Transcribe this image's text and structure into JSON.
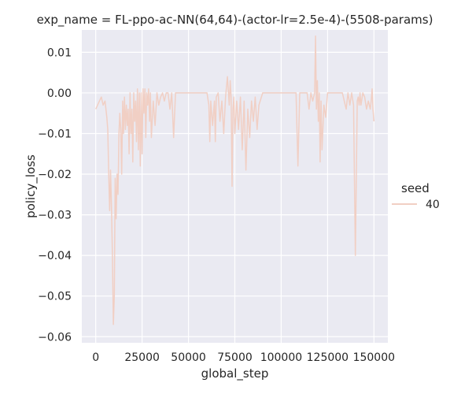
{
  "chart_data": {
    "type": "line",
    "title": "exp_name = FL-ppo-ac-NN(64,64)-(actor-lr=2.5e-4)-(5508-params)",
    "xlabel": "global_step",
    "ylabel": "policy_loss",
    "xlim": [
      -7500,
      157500
    ],
    "ylim": [
      -0.0615,
      0.0155
    ],
    "x_ticks": [
      0,
      25000,
      50000,
      75000,
      100000,
      125000,
      150000
    ],
    "x_tick_labels": [
      "0",
      "25000",
      "50000",
      "75000",
      "100000",
      "125000",
      "150000"
    ],
    "y_ticks": [
      0.01,
      0.0,
      -0.01,
      -0.02,
      -0.03,
      -0.04,
      -0.05,
      -0.06
    ],
    "y_tick_labels": [
      "0.01",
      "0.00",
      "−0.01",
      "−0.02",
      "−0.03",
      "−0.04",
      "−0.05",
      "−0.06"
    ],
    "grid": true,
    "legend": {
      "title": "seed",
      "placement": "right",
      "entries": [
        "40"
      ]
    },
    "colors": {
      "series": "#f1cfc4",
      "background": "#eaeaf2",
      "grid": "#ffffff"
    },
    "series": [
      {
        "name": "40",
        "x": [
          0,
          1000,
          2000,
          3000,
          4000,
          5000,
          6000,
          6500,
          7000,
          7500,
          8000,
          8500,
          9000,
          9500,
          10000,
          10500,
          11000,
          11500,
          12000,
          12500,
          13000,
          13500,
          14000,
          14500,
          15000,
          15500,
          16000,
          16500,
          17000,
          17500,
          18000,
          18500,
          19000,
          19500,
          20000,
          20500,
          21000,
          21500,
          22000,
          22500,
          23000,
          23500,
          24000,
          24500,
          25000,
          25500,
          26000,
          26500,
          27000,
          27500,
          28000,
          28500,
          29000,
          29500,
          30000,
          31000,
          32000,
          33000,
          34000,
          35000,
          36000,
          37000,
          38000,
          39000,
          40000,
          41000,
          42000,
          43000,
          45000,
          50000,
          55000,
          58000,
          60000,
          61000,
          61500,
          62000,
          63000,
          64000,
          64500,
          65000,
          66000,
          67000,
          68000,
          69000,
          70000,
          71000,
          72000,
          72500,
          73000,
          73500,
          74000,
          74500,
          75000,
          76000,
          77000,
          78000,
          79000,
          80000,
          81000,
          82000,
          83000,
          84000,
          85000,
          86000,
          87000,
          88000,
          90000,
          95000,
          100000,
          105000,
          108000,
          109000,
          110000,
          112000,
          114000,
          115000,
          116000,
          117000,
          118000,
          118500,
          119000,
          119500,
          120000,
          120500,
          121000,
          121500,
          122000,
          123000,
          124000,
          125000,
          127000,
          130000,
          133000,
          135000,
          136000,
          137000,
          138000,
          139000,
          140000,
          141000,
          141500,
          142000,
          142500,
          143000,
          144000,
          145000,
          146000,
          147000,
          148000,
          148500,
          149000,
          149500,
          150000
        ],
        "values": [
          -0.004,
          -0.003,
          -0.002,
          -0.001,
          -0.003,
          -0.002,
          -0.006,
          -0.009,
          -0.02,
          -0.029,
          -0.019,
          -0.028,
          -0.04,
          -0.057,
          -0.05,
          -0.021,
          -0.031,
          -0.02,
          -0.025,
          -0.01,
          -0.005,
          -0.009,
          -0.02,
          -0.002,
          -0.01,
          -0.001,
          -0.009,
          -0.003,
          -0.008,
          -0.004,
          -0.015,
          0.0,
          -0.01,
          -0.004,
          -0.017,
          0.0,
          -0.007,
          -0.002,
          -0.012,
          0.001,
          -0.014,
          0.0,
          -0.018,
          0.0,
          -0.015,
          0.001,
          -0.005,
          0.001,
          -0.011,
          0.0,
          -0.003,
          0.001,
          -0.007,
          0.0,
          -0.011,
          -0.002,
          -0.008,
          0.0,
          -0.003,
          -0.001,
          0.0,
          -0.002,
          0.0,
          0.0,
          -0.004,
          0.0,
          -0.011,
          0.0,
          0.0,
          0.0,
          0.0,
          0.0,
          0.0,
          -0.003,
          -0.012,
          -0.002,
          -0.008,
          -0.002,
          -0.012,
          -0.001,
          0.0,
          -0.007,
          -0.002,
          -0.01,
          -0.001,
          0.004,
          -0.003,
          0.003,
          -0.001,
          -0.023,
          -0.004,
          -0.001,
          -0.01,
          -0.002,
          -0.009,
          -0.001,
          -0.014,
          -0.002,
          -0.019,
          -0.004,
          -0.011,
          -0.002,
          -0.007,
          -0.001,
          -0.009,
          -0.003,
          0.0,
          0.0,
          0.0,
          0.0,
          0.0,
          -0.018,
          0.0,
          0.0,
          0.0,
          -0.004,
          0.0,
          -0.002,
          0.0,
          0.014,
          -0.004,
          0.003,
          -0.007,
          0.0,
          -0.017,
          -0.002,
          -0.014,
          -0.003,
          -0.006,
          0.0,
          0.0,
          0.0,
          0.0,
          -0.004,
          0.0,
          -0.003,
          0.0,
          -0.003,
          -0.04,
          -0.002,
          -0.001,
          -0.003,
          0.0,
          -0.003,
          0.0,
          -0.001,
          -0.004,
          -0.002,
          -0.004,
          -0.002,
          0.001,
          -0.004,
          -0.007
        ]
      }
    ]
  }
}
